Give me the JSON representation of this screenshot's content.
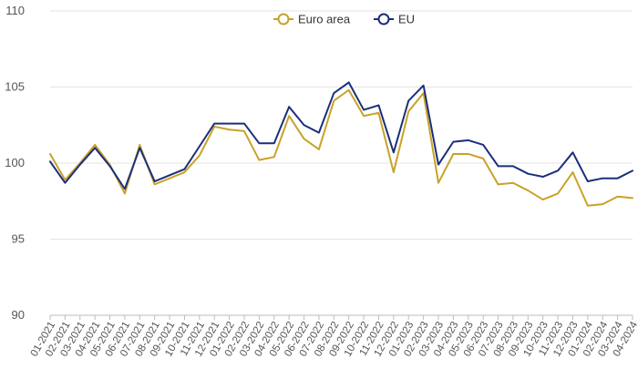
{
  "chart_data": {
    "type": "line",
    "title": "",
    "xlabel": "",
    "ylabel": "",
    "ylim": [
      90,
      110
    ],
    "yticks": [
      90,
      95,
      100,
      105,
      110
    ],
    "grid": true,
    "legend_position": "top-center",
    "categories": [
      "01-2021",
      "02-2021",
      "03-2021",
      "04-2021",
      "05-2021",
      "06-2021",
      "07-2021",
      "08-2021",
      "09-2021",
      "10-2021",
      "11-2021",
      "12-2021",
      "01-2022",
      "02-2022",
      "03-2022",
      "04-2022",
      "05-2022",
      "06-2022",
      "07-2022",
      "08-2022",
      "09-2022",
      "10-2022",
      "11-2022",
      "12-2022",
      "01-2023",
      "02-2023",
      "03-2023",
      "04-2023",
      "05-2023",
      "06-2023",
      "07-2023",
      "08-2023",
      "09-2023",
      "10-2023",
      "11-2023",
      "12-2023",
      "01-2024",
      "02-2024",
      "03-2024",
      "04-2024"
    ],
    "series": [
      {
        "name": "Euro area",
        "color": "#c9a227",
        "values": [
          100.6,
          98.9,
          100.0,
          101.2,
          99.9,
          98.0,
          101.2,
          98.6,
          99.0,
          99.4,
          100.5,
          102.4,
          102.2,
          102.1,
          100.2,
          100.4,
          103.1,
          101.6,
          100.9,
          104.1,
          104.8,
          103.1,
          103.3,
          99.4,
          103.4,
          104.6,
          98.7,
          100.6,
          100.6,
          100.3,
          98.6,
          98.7,
          98.2,
          97.6,
          98.0,
          99.4,
          97.2,
          97.3,
          97.8,
          97.7
        ]
      },
      {
        "name": "EU",
        "color": "#1b2f7a",
        "values": [
          100.1,
          98.7,
          99.9,
          101.0,
          99.8,
          98.3,
          101.0,
          98.8,
          99.2,
          99.6,
          101.1,
          102.6,
          102.6,
          102.6,
          101.3,
          101.3,
          103.7,
          102.5,
          102.0,
          104.6,
          105.3,
          103.5,
          103.8,
          100.7,
          104.1,
          105.1,
          99.9,
          101.4,
          101.5,
          101.2,
          99.8,
          99.8,
          99.3,
          99.1,
          99.5,
          100.7,
          98.8,
          99.0,
          99.0,
          99.5
        ]
      }
    ]
  }
}
